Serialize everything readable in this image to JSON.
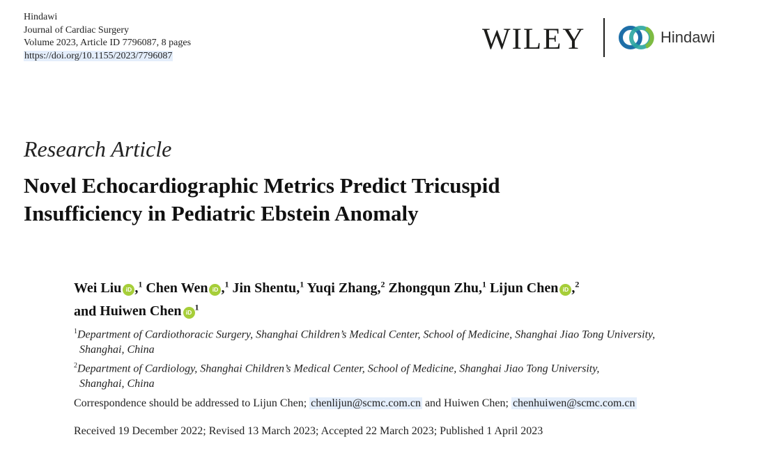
{
  "header": {
    "publisher": "Hindawi",
    "journal": "Journal of Cardiac Surgery",
    "volume_line": "Volume 2023, Article ID 7796087, 8 pages",
    "doi": "https://doi.org/10.1155/2023/7796087"
  },
  "logos": {
    "wiley": "WILEY",
    "hindawi": "Hindawi"
  },
  "article": {
    "type": "Research Article",
    "title_line1": "Novel Echocardiographic Metrics Predict Tricuspid",
    "title_line2": "Insufficiency in Pediatric Ebstein Anomaly"
  },
  "authors": [
    {
      "name": "Wei Liu",
      "orcid": true,
      "aff": "1",
      "sep": ","
    },
    {
      "name": "Chen Wen",
      "orcid": true,
      "aff": "1",
      "sep": ","
    },
    {
      "name": "Jin Shentu",
      "orcid": false,
      "aff": "1",
      "sep": ","
    },
    {
      "name": "Yuqi Zhang",
      "orcid": false,
      "aff": "2",
      "sep": ","
    },
    {
      "name": "Zhongqun Zhu",
      "orcid": false,
      "aff": "1",
      "sep": ","
    },
    {
      "name": "Lijun Chen",
      "orcid": true,
      "aff": "2",
      "sep": ","
    },
    {
      "name": "Huiwen Chen",
      "orcid": true,
      "aff": "1",
      "sep": ""
    }
  ],
  "authors_conjunction": "and",
  "orcid_label": "iD",
  "affiliations": [
    {
      "num": "1",
      "line1": "Department of Cardiothoracic Surgery, Shanghai Children’s Medical Center, School of Medicine, Shanghai Jiao Tong University,",
      "line2": "Shanghai, China"
    },
    {
      "num": "2",
      "line1": "Department of Cardiology, Shanghai Children’s Medical Center, School of Medicine, Shanghai Jiao Tong University,",
      "line2": "Shanghai, China"
    }
  ],
  "correspondence": {
    "prefix": "Correspondence should be addressed to Lijun Chen;",
    "email1": "chenlijun@scmc.com.cn",
    "middle": "and Huiwen Chen;",
    "email2": "chenhuiwen@scmc.com.cn"
  },
  "dates": "Received 19 December 2022; Revised 13 March 2023; Accepted 22 March 2023; Published 1 April 2023",
  "colors": {
    "orcid_green": "#a6ce39",
    "hindawi_blue": "#1e6fa8",
    "hindawi_teal": "#2aa5a0",
    "hindawi_green": "#7dbb42",
    "link_highlight": "#e4eefb"
  }
}
